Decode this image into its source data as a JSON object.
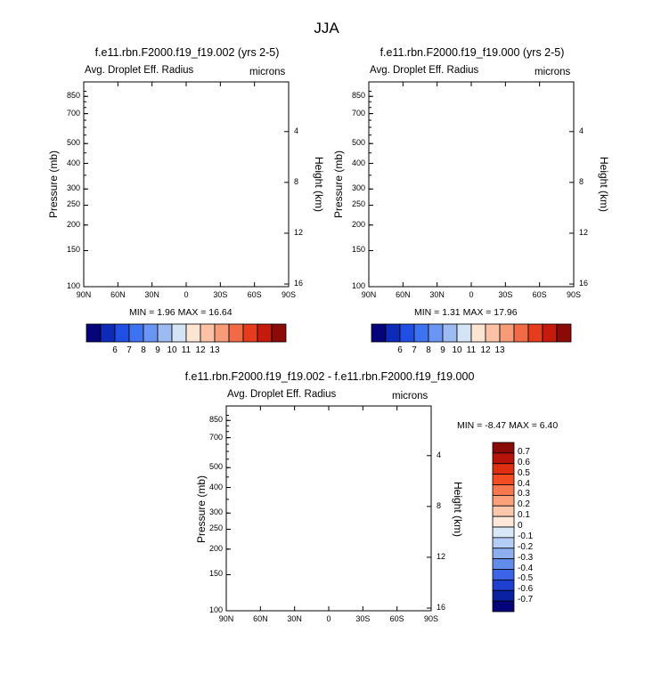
{
  "figure_title": "JJA",
  "chart_data": [
    {
      "type": "heatmap",
      "title": "f.e11.rbn.F2000.f19_f19.002 (yrs 2-5)",
      "subtitle_left": "Avg. Droplet Eff. Radius",
      "units": "microns",
      "xlabel": "",
      "ylabel": "Pressure (mb)",
      "ylabel_right": "Height (km)",
      "x_ticks": [
        "90N",
        "60N",
        "30N",
        "0",
        "30S",
        "60S",
        "90S"
      ],
      "y_ticks": [
        "100",
        "150",
        "200",
        "250",
        "300",
        "400",
        "500",
        "700",
        "850"
      ],
      "y2_ticks": [
        "16",
        "12",
        "8",
        "4"
      ],
      "stats": "MIN =   1.96  MAX =  16.64",
      "min": 1.96,
      "max": 16.64,
      "colorbar_labels": [
        "6",
        "7",
        "8",
        "9",
        "10",
        "11",
        "12",
        "13"
      ],
      "colorbar_orientation": "horizontal",
      "field": "mean1"
    },
    {
      "type": "heatmap",
      "title": "f.e11.rbn.F2000.f19_f19.000 (yrs 2-5)",
      "subtitle_left": "Avg. Droplet Eff. Radius",
      "units": "microns",
      "xlabel": "",
      "ylabel": "Pressure (mb)",
      "ylabel_right": "Height (km)",
      "x_ticks": [
        "90N",
        "60N",
        "30N",
        "0",
        "30S",
        "60S",
        "90S"
      ],
      "y_ticks": [
        "100",
        "150",
        "200",
        "250",
        "300",
        "400",
        "500",
        "700",
        "850"
      ],
      "y2_ticks": [
        "16",
        "12",
        "8",
        "4"
      ],
      "stats": "MIN =   1.31  MAX =  17.96",
      "min": 1.31,
      "max": 17.96,
      "colorbar_labels": [
        "6",
        "7",
        "8",
        "9",
        "10",
        "11",
        "12",
        "13"
      ],
      "colorbar_orientation": "horizontal",
      "field": "mean2"
    },
    {
      "type": "heatmap",
      "title": "f.e11.rbn.F2000.f19_f19.002 - f.e11.rbn.F2000.f19_f19.000",
      "subtitle_left": "Avg. Droplet Eff. Radius",
      "units": "microns",
      "xlabel": "",
      "ylabel": "Pressure (mb)",
      "ylabel_right": "Height (km)",
      "x_ticks": [
        "90N",
        "60N",
        "30N",
        "0",
        "30S",
        "60S",
        "90S"
      ],
      "y_ticks": [
        "100",
        "150",
        "200",
        "250",
        "300",
        "400",
        "500",
        "700",
        "850"
      ],
      "y2_ticks": [
        "16",
        "12",
        "8",
        "4"
      ],
      "stats": "MIN =  -8.47  MAX =   6.40",
      "min": -8.47,
      "max": 6.4,
      "colorbar_labels": [
        "0.7",
        "0.6",
        "0.5",
        "0.4",
        "0.3",
        "0.2",
        "0.1",
        "0",
        "-0.1",
        "-0.2",
        "-0.3",
        "-0.4",
        "-0.5",
        "-0.6",
        "-0.7"
      ],
      "colorbar_orientation": "vertical",
      "field": "diff"
    }
  ],
  "palette": {
    "mean": [
      "#06047a",
      "#0b2bb8",
      "#1f4fe3",
      "#3d72f0",
      "#6a95f2",
      "#9dbaf1",
      "#d4e4f7",
      "#fde5d4",
      "#fcc2a6",
      "#f89b77",
      "#f26946",
      "#e43c1d",
      "#c51b0c",
      "#8a0a07"
    ],
    "diff": [
      "#8a0a07",
      "#b8130b",
      "#df2f13",
      "#f24d22",
      "#f7784e",
      "#fba07a",
      "#fdc7ad",
      "#fde8da",
      "#d9e8f8",
      "#b3cdf5",
      "#8dafef",
      "#628ceb",
      "#3b64e6",
      "#1d3ecf",
      "#0b22a0",
      "#06047a"
    ]
  }
}
